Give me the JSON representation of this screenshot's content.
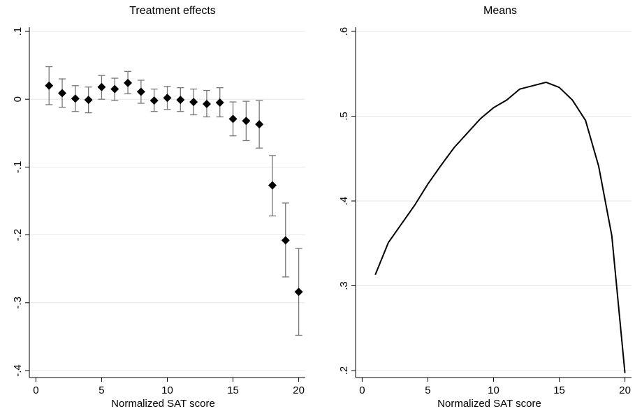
{
  "chart_data": [
    {
      "type": "scatter",
      "title": "Treatment effects",
      "xlabel": "Normalized SAT score",
      "ylabel": "",
      "xlim": [
        -0.5,
        20.5
      ],
      "ylim": [
        -0.4,
        0.1
      ],
      "xticks": [
        0,
        5,
        10,
        15,
        20
      ],
      "xtick_labels": [
        "0",
        "5",
        "10",
        "15",
        "20"
      ],
      "yticks": [
        0.1,
        0,
        -0.1,
        -0.2,
        -0.3,
        -0.4
      ],
      "ytick_labels": [
        ".1",
        "0",
        "-.1",
        "-.2",
        "-.3",
        "-.4"
      ],
      "grid": true,
      "series": [
        {
          "style": "point-with-error-bars",
          "x": [
            1,
            2,
            3,
            4,
            5,
            6,
            7,
            8,
            9,
            10,
            11,
            12,
            13,
            14,
            15,
            16,
            17,
            18,
            19,
            20
          ],
          "y": [
            0.02,
            0.009,
            0.001,
            -0.001,
            0.018,
            0.015,
            0.024,
            0.011,
            -0.002,
            0.002,
            -0.001,
            -0.004,
            -0.007,
            -0.005,
            -0.029,
            -0.032,
            -0.037,
            -0.127,
            -0.208,
            -0.284
          ],
          "lower": [
            -0.008,
            -0.012,
            -0.018,
            -0.02,
            0.0,
            -0.002,
            0.008,
            -0.006,
            -0.018,
            -0.015,
            -0.018,
            -0.023,
            -0.026,
            -0.026,
            -0.054,
            -0.061,
            -0.072,
            -0.172,
            -0.262,
            -0.348
          ],
          "upper": [
            0.048,
            0.03,
            0.02,
            0.018,
            0.035,
            0.031,
            0.041,
            0.028,
            0.015,
            0.019,
            0.017,
            0.015,
            0.013,
            0.017,
            -0.004,
            -0.003,
            -0.002,
            -0.083,
            -0.153,
            -0.22
          ]
        }
      ]
    },
    {
      "type": "line",
      "title": "Means",
      "xlabel": "Normalized SAT score",
      "ylabel": "",
      "xlim": [
        -0.5,
        20.5
      ],
      "ylim": [
        0.2,
        0.6
      ],
      "xticks": [
        0,
        5,
        10,
        15,
        20
      ],
      "xtick_labels": [
        "0",
        "5",
        "10",
        "15",
        "20"
      ],
      "yticks": [
        0.6,
        0.5,
        0.4,
        0.3,
        0.2
      ],
      "ytick_labels": [
        ".6",
        ".5",
        ".4",
        ".3",
        ".2"
      ],
      "grid": true,
      "series": [
        {
          "x": [
            1,
            2,
            3,
            4,
            5,
            6,
            7,
            8,
            9,
            10,
            11,
            12,
            13,
            14,
            15,
            16,
            17,
            18,
            19,
            20
          ],
          "y": [
            0.313,
            0.351,
            0.373,
            0.395,
            0.42,
            0.442,
            0.463,
            0.48,
            0.497,
            0.51,
            0.519,
            0.532,
            0.536,
            0.54,
            0.534,
            0.519,
            0.495,
            0.441,
            0.359,
            0.197
          ]
        }
      ]
    }
  ]
}
